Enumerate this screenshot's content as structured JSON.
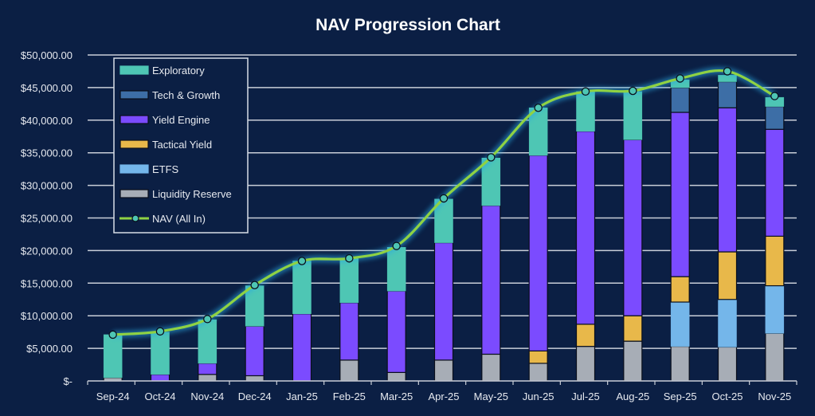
{
  "chart_data": {
    "type": "bar",
    "stacked": true,
    "title": "NAV Progression Chart",
    "xlabel": "",
    "ylabel": "",
    "ylim": [
      0,
      50000
    ],
    "y_ticks": [
      "$-",
      "$5,000.00",
      "$10,000.00",
      "$15,000.00",
      "$20,000.00",
      "$25,000.00",
      "$30,000.00",
      "$35,000.00",
      "$40,000.00",
      "$45,000.00",
      "$50,000.00"
    ],
    "y_tick_values": [
      0,
      5000,
      10000,
      15000,
      20000,
      25000,
      30000,
      35000,
      40000,
      45000,
      50000
    ],
    "grid": true,
    "legend_position": "top-left",
    "categories": [
      "Sep-24",
      "Oct-24",
      "Nov-24",
      "Dec-24",
      "Jan-25",
      "Feb-25",
      "Mar-25",
      "Apr-25",
      "May-25",
      "Jun-25",
      "Jul-25",
      "Aug-25",
      "Sep-25",
      "Oct-25",
      "Nov-25"
    ],
    "series": [
      {
        "name": "Liquidity Reserve",
        "color": "#a7adb6",
        "values": [
          500,
          0,
          1000,
          800,
          0,
          3200,
          1300,
          3200,
          4100,
          2700,
          5300,
          6100,
          5300,
          5200,
          7300
        ]
      },
      {
        "name": "ETFS",
        "color": "#74b6ea",
        "values": [
          0,
          0,
          0,
          0,
          0,
          0,
          0,
          0,
          0,
          0,
          0,
          0,
          6800,
          7300,
          7300
        ]
      },
      {
        "name": "Tactical Yield",
        "color": "#e8b84a",
        "values": [
          0,
          0,
          0,
          0,
          0,
          0,
          0,
          0,
          0,
          1900,
          3400,
          3900,
          3900,
          7300,
          7600
        ]
      },
      {
        "name": "Yield Engine",
        "color": "#7b4bff",
        "values": [
          0,
          1000,
          1700,
          7600,
          10300,
          8800,
          12500,
          18000,
          22800,
          30000,
          29600,
          27000,
          25200,
          22100,
          16400
        ]
      },
      {
        "name": "Tech & Growth",
        "color": "#3d6ea6",
        "values": [
          0,
          0,
          0,
          0,
          0,
          0,
          0,
          0,
          0,
          0,
          0,
          0,
          3800,
          4000,
          3500
        ]
      },
      {
        "name": "Exploratory",
        "color": "#4ec6b4",
        "values": [
          6600,
          6500,
          6700,
          6200,
          8100,
          6800,
          6700,
          6700,
          7300,
          7300,
          6100,
          7400,
          1200,
          1000,
          1400
        ]
      }
    ],
    "line_series": {
      "name": "NAV (All In)",
      "color": "#8fd243",
      "marker_color": "#4ec6b4",
      "values": [
        7100,
        7600,
        9500,
        14700,
        18400,
        18800,
        20700,
        28000,
        34300,
        41900,
        44400,
        44500,
        46400,
        47500,
        43700
      ]
    },
    "legend": [
      "Exploratory",
      "Tech & Growth",
      "Yield Engine",
      "Tactical Yield",
      "ETFS",
      "Liquidity Reserve",
      "NAV (All In)"
    ]
  }
}
